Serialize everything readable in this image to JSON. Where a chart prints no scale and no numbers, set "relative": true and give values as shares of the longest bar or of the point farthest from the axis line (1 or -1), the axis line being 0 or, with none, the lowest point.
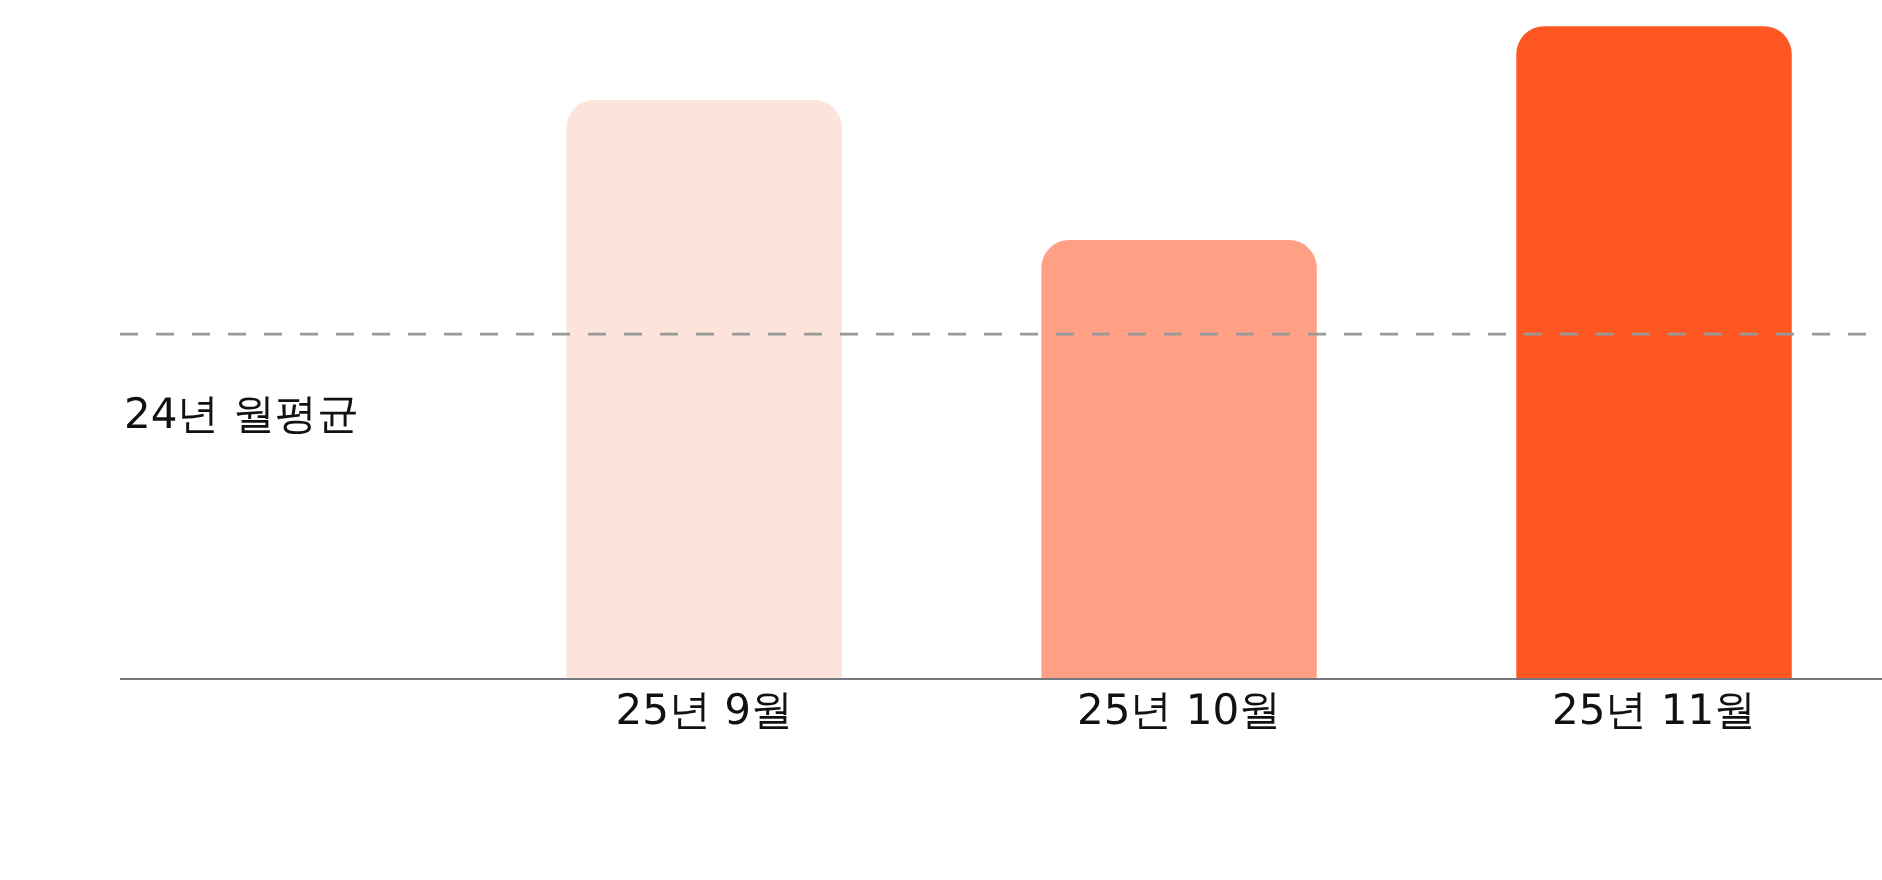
{
  "chart_data": {
    "type": "bar",
    "relative": true,
    "categories": [
      "25년 9월",
      "25년 10월",
      "25년 11월"
    ],
    "values": [
      0.887,
      0.673,
      1
    ],
    "colors": [
      "#fde4da",
      "#ffa084",
      "#ff5722"
    ],
    "ref_lines": [
      {
        "axis": "y",
        "value": 0.529,
        "label": "24년 월평균",
        "color": "#999999",
        "line_style": "dashed"
      }
    ]
  }
}
